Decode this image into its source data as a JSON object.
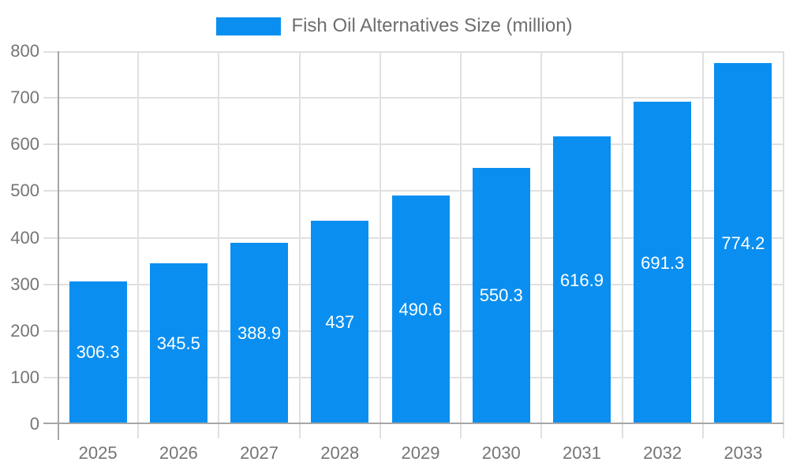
{
  "chart_data": {
    "type": "bar",
    "title": "",
    "legend": "Fish Oil Alternatives Size (million)",
    "legend_position": "top-center",
    "categories": [
      "2025",
      "2026",
      "2027",
      "2028",
      "2029",
      "2030",
      "2031",
      "2032",
      "2033"
    ],
    "values": [
      306.3,
      345.5,
      388.9,
      437,
      490.6,
      550.3,
      616.9,
      691.3,
      774.2
    ],
    "value_labels": [
      "306.3",
      "345.5",
      "388.9",
      "437",
      "490.6",
      "550.3",
      "616.9",
      "691.3",
      "774.2"
    ],
    "xlabel": "",
    "ylabel": "",
    "ylim": [
      0,
      800
    ],
    "yticks": [
      0,
      100,
      200,
      300,
      400,
      500,
      600,
      700,
      800
    ],
    "grid": true,
    "colors": {
      "bar": "#0a8ff0",
      "value_label": "#ffffff",
      "gridline": "#e0e0e0",
      "axis_line": "#a6a6a6",
      "axis_label": "#757575",
      "legend_text": "#6e6e6e",
      "background": "#ffffff"
    }
  }
}
